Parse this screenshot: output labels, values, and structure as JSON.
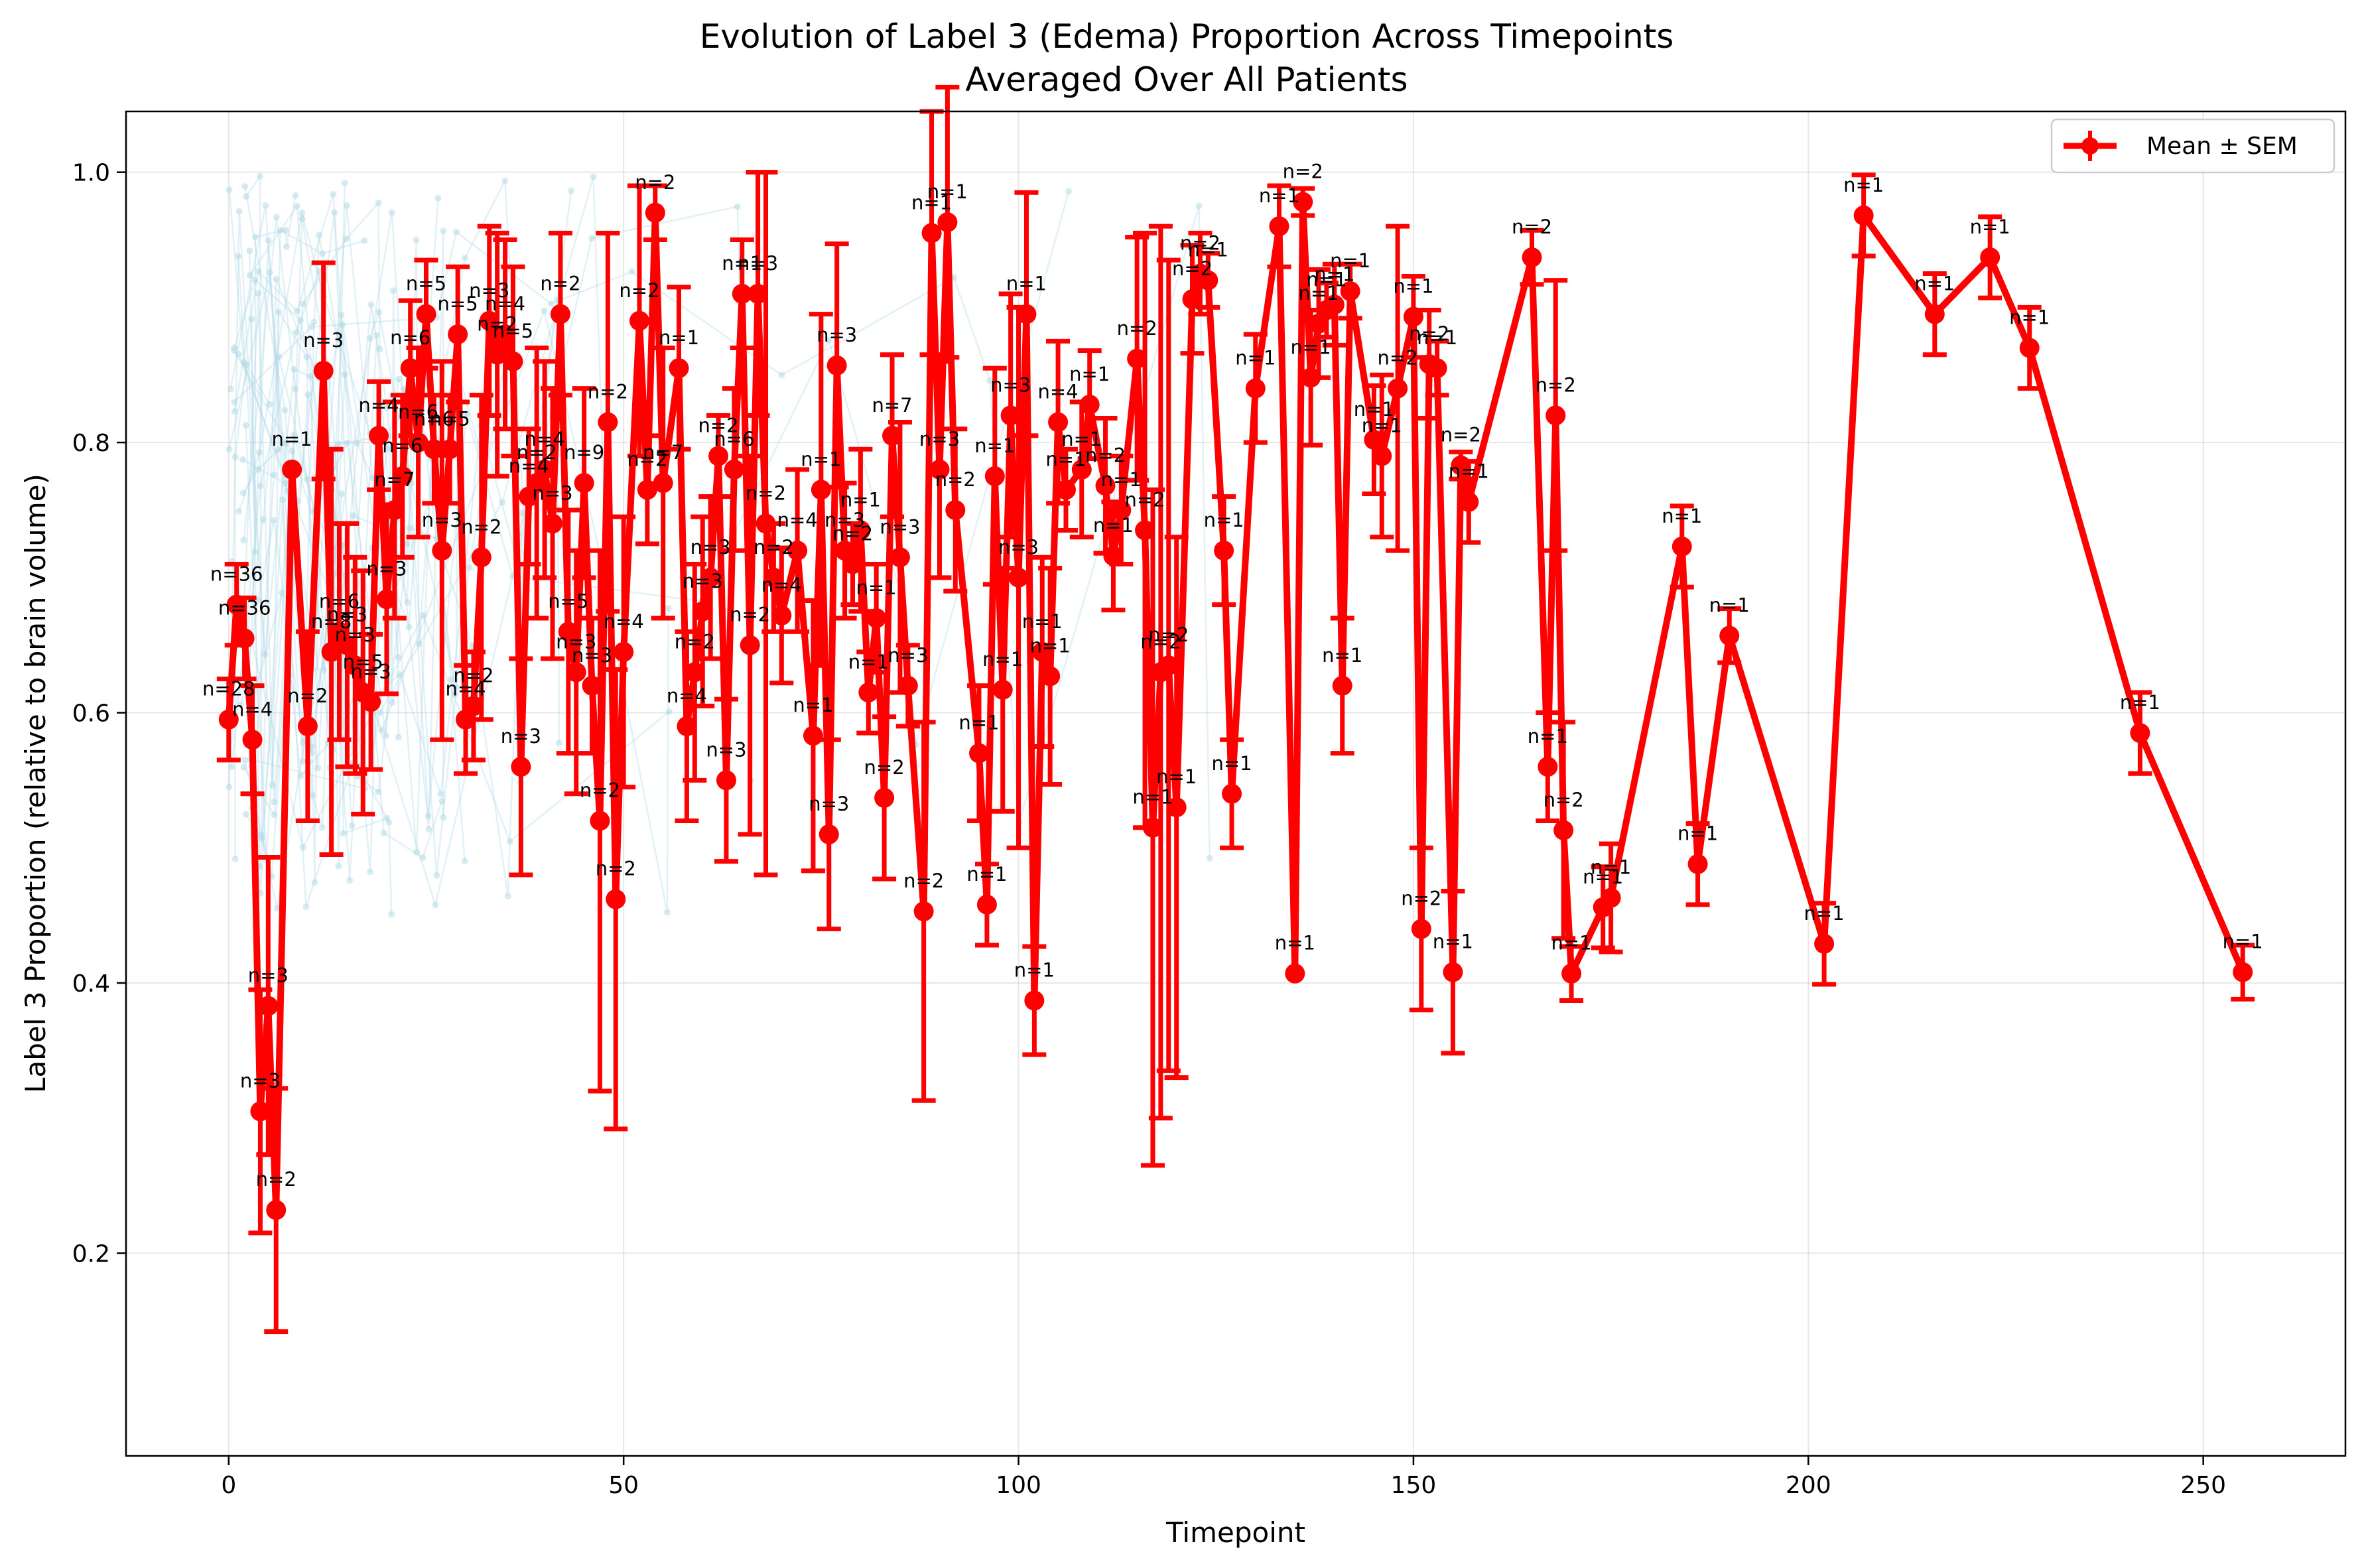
{
  "chart_data": {
    "type": "line",
    "title_lines": [
      "Evolution of Label 3 (Edema) Proportion Across Timepoints",
      "Averaged Over All Patients"
    ],
    "xlabel": "Timepoint",
    "ylabel": "Label 3 Proportion (relative to brain volume)",
    "xlim": [
      -13,
      268
    ],
    "ylim": [
      0.05,
      1.045
    ],
    "x_ticks": [
      0,
      50,
      100,
      150,
      200,
      250
    ],
    "y_ticks": [
      0.2,
      0.4,
      0.6,
      0.8,
      1.0
    ],
    "x_tick_labels": [
      "0",
      "50",
      "100",
      "150",
      "200",
      "250"
    ],
    "y_tick_labels": [
      "0.2",
      "0.4",
      "0.6",
      "0.8",
      "1.0"
    ],
    "grid": true,
    "legend": {
      "placement": "top-right",
      "entries": [
        "Mean ± SEM"
      ]
    },
    "colors": {
      "mean": "#ff0000",
      "background": "#add8e6"
    },
    "series": [
      {
        "name": "Mean ± SEM",
        "x": [
          0,
          1,
          2,
          3,
          4,
          5,
          6,
          8,
          10,
          12,
          13,
          14,
          15,
          16,
          17,
          18,
          19,
          20,
          21,
          22,
          23,
          24,
          25,
          26,
          27,
          28,
          29,
          30,
          31,
          32,
          33,
          34,
          35,
          36,
          37,
          38,
          39,
          40,
          41,
          42,
          43,
          44,
          45,
          46,
          47,
          48,
          49,
          50,
          52,
          53,
          54,
          55,
          57,
          58,
          59,
          60,
          61,
          62,
          63,
          64,
          65,
          66,
          67,
          68,
          69,
          70,
          72,
          74,
          75,
          76,
          77,
          78,
          79,
          80,
          81,
          82,
          83,
          84,
          85,
          86,
          88,
          89,
          90,
          91,
          92,
          95,
          96,
          97,
          98,
          99,
          100,
          101,
          102,
          103,
          104,
          105,
          106,
          108,
          109,
          111,
          112,
          113,
          115,
          116,
          117,
          118,
          119,
          120,
          122,
          123,
          124,
          126,
          127,
          130,
          133,
          135,
          136,
          137,
          138,
          139,
          140,
          141,
          142,
          145,
          146,
          148,
          150,
          151,
          152,
          153,
          155,
          156,
          157,
          165,
          167,
          168,
          169,
          170,
          174,
          175,
          184,
          186,
          190,
          202,
          207,
          216,
          223,
          228,
          242,
          255
        ],
        "y": [
          0.595,
          0.68,
          0.655,
          0.58,
          0.305,
          0.383,
          0.232,
          0.78,
          0.59,
          0.853,
          0.645,
          0.66,
          0.65,
          0.635,
          0.615,
          0.608,
          0.805,
          0.684,
          0.75,
          0.775,
          0.855,
          0.8,
          0.895,
          0.795,
          0.72,
          0.795,
          0.88,
          0.595,
          0.605,
          0.715,
          0.89,
          0.865,
          0.88,
          0.86,
          0.56,
          0.76,
          0.77,
          0.78,
          0.74,
          0.895,
          0.66,
          0.63,
          0.77,
          0.62,
          0.52,
          0.815,
          0.462,
          0.645,
          0.89,
          0.765,
          0.97,
          0.77,
          0.855,
          0.59,
          0.63,
          0.675,
          0.7,
          0.79,
          0.55,
          0.78,
          0.91,
          0.65,
          0.91,
          0.74,
          0.7,
          0.672,
          0.72,
          0.583,
          0.765,
          0.51,
          0.857,
          0.72,
          0.71,
          0.735,
          0.615,
          0.67,
          0.537,
          0.805,
          0.715,
          0.62,
          0.453,
          0.955,
          0.78,
          0.963,
          0.75,
          0.57,
          0.458,
          0.775,
          0.617,
          0.82,
          0.7,
          0.895,
          0.387,
          0.645,
          0.627,
          0.815,
          0.765,
          0.78,
          0.828,
          0.768,
          0.716,
          0.75,
          0.862,
          0.735,
          0.515,
          0.63,
          0.635,
          0.53,
          0.906,
          0.925,
          0.92,
          0.72,
          0.54,
          0.84,
          0.96,
          0.407,
          0.978,
          0.848,
          0.888,
          0.898,
          0.902,
          0.62,
          0.912,
          0.802,
          0.79,
          0.84,
          0.893,
          0.44,
          0.858,
          0.855,
          0.408,
          0.783,
          0.756,
          0.937,
          0.56,
          0.82,
          0.513,
          0.407,
          0.456,
          0.463,
          0.723,
          0.488,
          0.657,
          0.429,
          0.968,
          0.895,
          0.937,
          0.87,
          0.585,
          0.408
        ],
        "sem": [
          0.03,
          0.03,
          0.03,
          0.04,
          0.09,
          0.11,
          0.09,
          0.0,
          0.07,
          0.08,
          0.15,
          0.08,
          0.09,
          0.08,
          0.09,
          0.05,
          0.04,
          0.07,
          0.08,
          0.06,
          0.05,
          0.07,
          0.04,
          0.04,
          0.14,
          0.04,
          0.05,
          0.04,
          0.04,
          0.12,
          0.07,
          0.09,
          0.07,
          0.07,
          0.08,
          0.05,
          0.1,
          0.08,
          0.1,
          0.06,
          0.09,
          0.09,
          0.07,
          0.05,
          0.2,
          0.14,
          0.17,
          0.1,
          0.1,
          0.04,
          0.02,
          0.1,
          0.06,
          0.07,
          0.08,
          0.07,
          0.06,
          0.03,
          0.06,
          0.06,
          0.04,
          0.14,
          0.09,
          0.26,
          0.04,
          0.05,
          0.06,
          0.1,
          0.13,
          0.07,
          0.09,
          0.05,
          0.03,
          0.06,
          0.03,
          0.04,
          0.06,
          0.06,
          0.1,
          0.03,
          0.14,
          0.09,
          0.08,
          0.1,
          0.06,
          0.05,
          0.03,
          0.08,
          0.09,
          0.09,
          0.2,
          0.09,
          0.04,
          0.07,
          0.08,
          0.06,
          0.03,
          0.05,
          0.04,
          0.05,
          0.04,
          0.04,
          0.09,
          0.22,
          0.25,
          0.33,
          0.3,
          0.2,
          0.04,
          0.03,
          0.02,
          0.04,
          0.04,
          0.04,
          0.03,
          0.0,
          0.01,
          0.05,
          0.04,
          0.02,
          0.03,
          0.05,
          0.02,
          0.04,
          0.06,
          0.12,
          0.03,
          0.06,
          0.04,
          0.02,
          0.06,
          0.01,
          0.03,
          0.02,
          0.04,
          0.1,
          0.08,
          0.02,
          0.03,
          0.04,
          0.03,
          0.03,
          0.02,
          0.03,
          0.03,
          0.03,
          0.03,
          0.03,
          0.03,
          0.02
        ],
        "n_labels": [
          "n=28",
          "n=36",
          "n=36",
          "n=4",
          "n=3",
          "n=3",
          "n=2",
          "n=1",
          "n=2",
          "n=3",
          "n=8",
          "n=6",
          "n=3",
          "n=3",
          "n=5",
          "n=3",
          "n=4",
          "n=3",
          "n=7",
          "n=6",
          "n=6",
          "n=6",
          "n=5",
          "n=6",
          "n=3",
          "n=5",
          "n=5",
          "n=4",
          "n=2",
          "n=2",
          "n=3",
          "n=2",
          "n=4",
          "n=5",
          "n=3",
          "n=4",
          "n=2",
          "n=4",
          "n=3",
          "n=2",
          "n=5",
          "n=3",
          "n=9",
          "n=3",
          "n=2",
          "n=2",
          "n=2",
          "n=4",
          "n=2",
          "n=2",
          "n=2",
          "n=7",
          "n=1",
          "n=4",
          "n=2",
          "n=3",
          "n=3",
          "n=2",
          "n=3",
          "n=6",
          "n=1",
          "n=2",
          "n=3",
          "n=2",
          "n=2",
          "n=4",
          "n=4",
          "n=1",
          "n=1",
          "n=3",
          "n=3",
          "n=3",
          "n=2",
          "n=1",
          "n=1",
          "n=1",
          "n=2",
          "n=7",
          "n=3",
          "n=3",
          "n=2",
          "n=1",
          "n=3",
          "n=1",
          "n=2",
          "n=1",
          "n=1",
          "n=1",
          "n=1",
          "n=3",
          "n=3",
          "n=1",
          "n=1",
          "n=1",
          "n=1",
          "n=4",
          "n=1",
          "n=1",
          "n=1",
          "n=2",
          "n=1",
          "n=1",
          "n=2",
          "n=2",
          "n=1",
          "n=2",
          "n=2",
          "n=1",
          "n=2",
          "n=2",
          "n=1",
          "n=1",
          "n=1",
          "n=1",
          "n=1",
          "n=1",
          "n=2",
          "n=1",
          "n=1",
          "n=1",
          "n=1",
          "n=1",
          "n=1",
          "n=1",
          "n=1",
          "n=2",
          "n=1",
          "n=2",
          "n=2",
          "n=1",
          "n=1",
          "n=2",
          "n=1",
          "n=2",
          "n=1",
          "n=2",
          "n=2",
          "n=1",
          "n=1",
          "n=1",
          "n=1",
          "n=1",
          "n=1",
          "n=1",
          "n=1",
          "n=1",
          "n=1",
          "n=1",
          "n=1",
          "n=1"
        ]
      }
    ]
  }
}
